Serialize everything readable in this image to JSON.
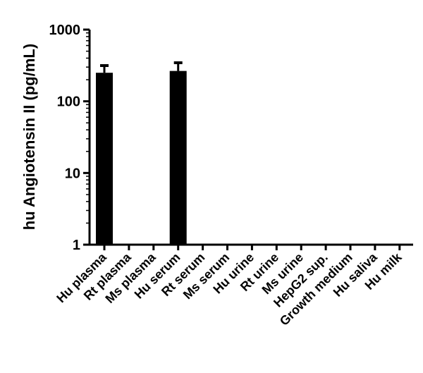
{
  "chart_data": {
    "type": "bar",
    "title": "",
    "xlabel": "",
    "ylabel": "hu Angiotensin II (pg/mL)",
    "yscale": "log",
    "ylim": [
      1,
      1000
    ],
    "yticks": [
      {
        "value": 1,
        "label": "1"
      },
      {
        "value": 10,
        "label": "10"
      },
      {
        "value": 100,
        "label": "100"
      },
      {
        "value": 1000,
        "label": "1000"
      }
    ],
    "categories": [
      "Hu plasma",
      "Rt plasma",
      "Ms plasma",
      "Hu serum",
      "Rt serum",
      "Ms serum",
      "Hu urine",
      "Rt urine",
      "Ms urine",
      "HepG2 sup.",
      "Growth medium",
      "Hu saliva",
      "Hu milk"
    ],
    "values": [
      250,
      null,
      null,
      265,
      null,
      null,
      null,
      null,
      null,
      null,
      null,
      null,
      null
    ],
    "error_upper": [
      315,
      null,
      null,
      345,
      null,
      null,
      null,
      null,
      null,
      null,
      null,
      null,
      null
    ],
    "grid": false,
    "bar_color": "#000000"
  }
}
